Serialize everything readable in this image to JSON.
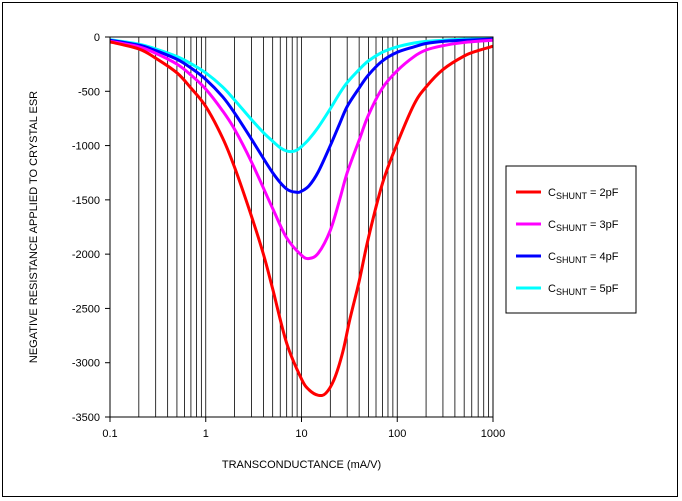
{
  "chart_data": {
    "type": "line",
    "title": "",
    "xlabel": "TRANSCONDUCTANCE (mA/V)",
    "ylabel": "NEGATIVE RESISTANCE APPLIED TO CRYSTAL ESR",
    "xscale": "log",
    "xlim": [
      0.1,
      1000
    ],
    "ylim": [
      -3500,
      0
    ],
    "xticks": [
      {
        "value": 0.1,
        "label": "0.1"
      },
      {
        "value": 1,
        "label": "1"
      },
      {
        "value": 10,
        "label": "10"
      },
      {
        "value": 100,
        "label": "100"
      },
      {
        "value": 1000,
        "label": "1000"
      }
    ],
    "yticks": [
      {
        "value": 0,
        "label": "0"
      },
      {
        "value": -500,
        "label": "-500"
      },
      {
        "value": -1000,
        "label": "-1000"
      },
      {
        "value": -1500,
        "label": "-1500"
      },
      {
        "value": -2000,
        "label": "-2000"
      },
      {
        "value": -2500,
        "label": "-2500"
      },
      {
        "value": -3000,
        "label": "-3000"
      },
      {
        "value": -3500,
        "label": "-3500"
      }
    ],
    "grid": {
      "vertical": "log-minor",
      "horizontal": false
    },
    "legend_position": "right",
    "series": [
      {
        "name": "C_SHUNT = 2pF",
        "label_main": "C",
        "label_sub": "SHUNT",
        "label_tail": " = 2pF",
        "color": "#ff0000",
        "points": [
          [
            0.1,
            -45
          ],
          [
            0.2,
            -110
          ],
          [
            0.3,
            -195
          ],
          [
            0.5,
            -330
          ],
          [
            0.7,
            -470
          ],
          [
            1,
            -640
          ],
          [
            1.5,
            -930
          ],
          [
            2,
            -1200
          ],
          [
            3,
            -1650
          ],
          [
            4,
            -2000
          ],
          [
            5,
            -2320
          ],
          [
            7,
            -2820
          ],
          [
            10,
            -3150
          ],
          [
            12,
            -3250
          ],
          [
            15,
            -3300
          ],
          [
            18,
            -3280
          ],
          [
            22,
            -3150
          ],
          [
            27,
            -2900
          ],
          [
            32,
            -2600
          ],
          [
            40,
            -2250
          ],
          [
            50,
            -1850
          ],
          [
            70,
            -1350
          ],
          [
            100,
            -980
          ],
          [
            150,
            -620
          ],
          [
            200,
            -460
          ],
          [
            300,
            -300
          ],
          [
            500,
            -175
          ],
          [
            700,
            -125
          ],
          [
            1000,
            -85
          ]
        ]
      },
      {
        "name": "C_SHUNT = 3pF",
        "label_main": "C",
        "label_sub": "SHUNT",
        "label_tail": " = 3pF",
        "color": "#ff00ff",
        "points": [
          [
            0.1,
            -40
          ],
          [
            0.2,
            -90
          ],
          [
            0.3,
            -150
          ],
          [
            0.5,
            -250
          ],
          [
            0.7,
            -350
          ],
          [
            1,
            -480
          ],
          [
            1.5,
            -680
          ],
          [
            2,
            -850
          ],
          [
            3,
            -1150
          ],
          [
            5,
            -1580
          ],
          [
            7,
            -1850
          ],
          [
            10,
            -2010
          ],
          [
            12,
            -2040
          ],
          [
            15,
            -1990
          ],
          [
            20,
            -1780
          ],
          [
            25,
            -1500
          ],
          [
            30,
            -1250
          ],
          [
            40,
            -950
          ],
          [
            50,
            -720
          ],
          [
            70,
            -470
          ],
          [
            100,
            -310
          ],
          [
            150,
            -180
          ],
          [
            200,
            -120
          ],
          [
            300,
            -80
          ],
          [
            500,
            -50
          ],
          [
            1000,
            -30
          ]
        ]
      },
      {
        "name": "C_SHUNT = 4pF",
        "label_main": "C",
        "label_sub": "SHUNT",
        "label_tail": " = 4pF",
        "color": "#0000ff",
        "points": [
          [
            0.1,
            -30
          ],
          [
            0.2,
            -75
          ],
          [
            0.3,
            -125
          ],
          [
            0.5,
            -205
          ],
          [
            0.7,
            -285
          ],
          [
            1,
            -390
          ],
          [
            1.5,
            -550
          ],
          [
            2,
            -700
          ],
          [
            3,
            -940
          ],
          [
            5,
            -1250
          ],
          [
            7,
            -1400
          ],
          [
            9,
            -1430
          ],
          [
            10,
            -1420
          ],
          [
            12,
            -1370
          ],
          [
            15,
            -1240
          ],
          [
            20,
            -1000
          ],
          [
            25,
            -800
          ],
          [
            30,
            -640
          ],
          [
            40,
            -470
          ],
          [
            50,
            -350
          ],
          [
            70,
            -220
          ],
          [
            100,
            -140
          ],
          [
            150,
            -90
          ],
          [
            200,
            -60
          ],
          [
            300,
            -40
          ],
          [
            500,
            -30
          ],
          [
            1000,
            -20
          ]
        ]
      },
      {
        "name": "C_SHUNT = 5pF",
        "label_main": "C",
        "label_sub": "SHUNT",
        "label_tail": " = 5pF",
        "color": "#00ffff",
        "points": [
          [
            0.1,
            -25
          ],
          [
            0.2,
            -65
          ],
          [
            0.3,
            -110
          ],
          [
            0.5,
            -180
          ],
          [
            0.7,
            -245
          ],
          [
            1,
            -330
          ],
          [
            1.5,
            -460
          ],
          [
            2,
            -580
          ],
          [
            3,
            -760
          ],
          [
            4,
            -880
          ],
          [
            5,
            -960
          ],
          [
            6,
            -1020
          ],
          [
            7,
            -1050
          ],
          [
            8,
            -1055
          ],
          [
            9,
            -1040
          ],
          [
            10,
            -1010
          ],
          [
            12,
            -940
          ],
          [
            15,
            -830
          ],
          [
            20,
            -660
          ],
          [
            25,
            -520
          ],
          [
            30,
            -420
          ],
          [
            40,
            -300
          ],
          [
            50,
            -220
          ],
          [
            70,
            -140
          ],
          [
            100,
            -90
          ],
          [
            150,
            -55
          ],
          [
            200,
            -40
          ],
          [
            300,
            -30
          ],
          [
            500,
            -20
          ],
          [
            1000,
            -15
          ]
        ]
      }
    ]
  }
}
